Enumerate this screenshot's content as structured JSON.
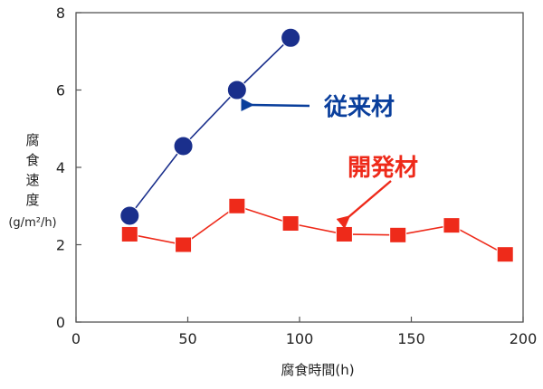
{
  "chart_data": {
    "type": "line",
    "xlabel": "腐食時間(h)",
    "ylabel_chars": [
      "腐",
      "食",
      "速",
      "度"
    ],
    "ylabel_unit": "(g/m²/h)",
    "xlim": [
      0,
      200
    ],
    "ylim": [
      0,
      8
    ],
    "xticks": [
      0,
      50,
      100,
      150,
      200
    ],
    "yticks": [
      0,
      2,
      4,
      6,
      8
    ],
    "grid": false,
    "series": [
      {
        "name": "従来材",
        "color": "#1a2f8c",
        "marker": "circle",
        "x": [
          24,
          48,
          72,
          96
        ],
        "y": [
          2.75,
          4.55,
          6.0,
          7.35
        ]
      },
      {
        "name": "開発材",
        "color": "#ee2a1a",
        "marker": "square",
        "x": [
          24,
          48,
          72,
          96,
          120,
          144,
          168,
          192
        ],
        "y": [
          2.27,
          2.0,
          3.0,
          2.55,
          2.27,
          2.25,
          2.5,
          1.75
        ]
      }
    ],
    "annotations": [
      {
        "series": 0,
        "text": "従来材",
        "color": "#0a3f9c"
      },
      {
        "series": 1,
        "text": "開発材",
        "color": "#ee2a1a"
      }
    ]
  }
}
